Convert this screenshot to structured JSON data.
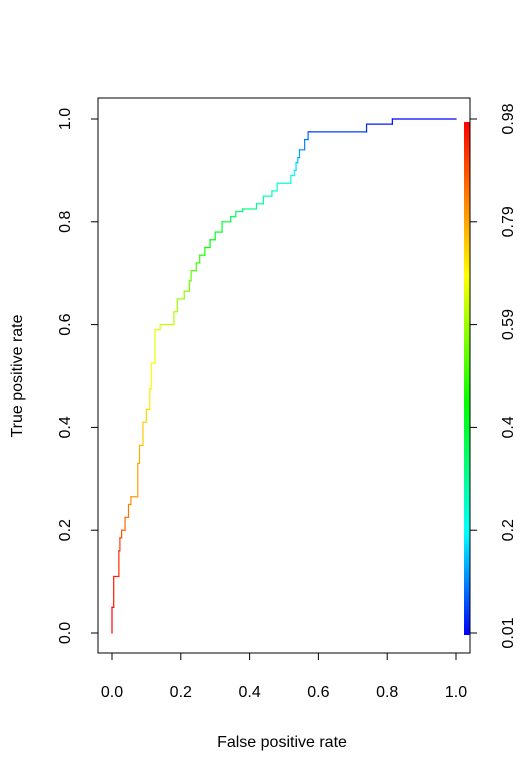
{
  "chart_data": {
    "type": "line",
    "title": "",
    "xlabel": "False positive rate",
    "ylabel": "True positive rate",
    "xlim": [
      0,
      1
    ],
    "ylim": [
      0,
      1
    ],
    "grid": false,
    "legend": "none",
    "x_ticks": [
      "0.0",
      "0.2",
      "0.4",
      "0.6",
      "0.8",
      "1.0"
    ],
    "y_ticks": [
      "0.0",
      "0.2",
      "0.4",
      "0.6",
      "0.8",
      "1.0"
    ],
    "colorbar": {
      "orientation": "vertical",
      "position": "right",
      "colormap": "rainbow (blue low → red high)",
      "ticks": [
        "0.01",
        "0.2",
        "0.4",
        "0.59",
        "0.79",
        "0.98"
      ],
      "range": [
        0.01,
        0.98
      ]
    },
    "series": [
      {
        "x": [
          0,
          0,
          0.005,
          0.005,
          0.02,
          0.02,
          0.023,
          0.023,
          0.028,
          0.028,
          0.038,
          0.038,
          0.048,
          0.048,
          0.055,
          0.055,
          0.075,
          0.075,
          0.08,
          0.08,
          0.09,
          0.09,
          0.1,
          0.1,
          0.11,
          0.11,
          0.115,
          0.115,
          0.125,
          0.125,
          0.14,
          0.14,
          0.18,
          0.18,
          0.19,
          0.19,
          0.21,
          0.21,
          0.225,
          0.225,
          0.23,
          0.23,
          0.245,
          0.245,
          0.255,
          0.255,
          0.27,
          0.27,
          0.285,
          0.285,
          0.3,
          0.3,
          0.32,
          0.32,
          0.345,
          0.345,
          0.36,
          0.36,
          0.38,
          0.38,
          0.42,
          0.42,
          0.44,
          0.44,
          0.465,
          0.465,
          0.48,
          0.48,
          0.52,
          0.52,
          0.53,
          0.53,
          0.535,
          0.535,
          0.54,
          0.54,
          0.545,
          0.545,
          0.56,
          0.56,
          0.57,
          0.57,
          0.575,
          0.575,
          0.74,
          0.74,
          0.815,
          0.815,
          1.0
        ],
        "y": [
          0,
          0.05,
          0.05,
          0.11,
          0.11,
          0.16,
          0.16,
          0.185,
          0.185,
          0.2,
          0.2,
          0.225,
          0.225,
          0.25,
          0.25,
          0.265,
          0.265,
          0.33,
          0.33,
          0.365,
          0.365,
          0.41,
          0.41,
          0.435,
          0.435,
          0.475,
          0.475,
          0.525,
          0.525,
          0.59,
          0.59,
          0.6,
          0.6,
          0.625,
          0.625,
          0.65,
          0.65,
          0.665,
          0.665,
          0.685,
          0.685,
          0.705,
          0.705,
          0.72,
          0.72,
          0.735,
          0.735,
          0.75,
          0.75,
          0.765,
          0.765,
          0.78,
          0.78,
          0.8,
          0.8,
          0.81,
          0.81,
          0.82,
          0.82,
          0.825,
          0.825,
          0.835,
          0.835,
          0.85,
          0.85,
          0.86,
          0.86,
          0.875,
          0.875,
          0.89,
          0.89,
          0.9,
          0.9,
          0.915,
          0.915,
          0.925,
          0.925,
          0.94,
          0.94,
          0.96,
          0.96,
          0.975,
          0.975,
          0.975,
          0.975,
          0.99,
          0.99,
          1.0,
          1.0
        ]
      }
    ]
  }
}
